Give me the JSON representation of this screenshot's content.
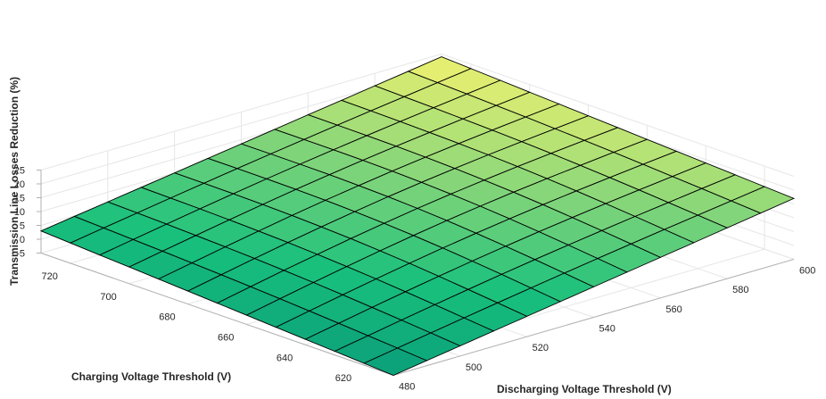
{
  "chart_data": {
    "type": "surface",
    "title": "",
    "zlabel": "Transmission Line Losses Reduction (%)",
    "ylabel": "Charging Voltage Threshold (V)",
    "xlabel": "Discharging Voltage Threshold (V)",
    "x_axis": {
      "name": "Discharging Voltage Threshold (V)",
      "range": [
        480,
        600
      ],
      "ticks": [
        480,
        500,
        520,
        540,
        560,
        580,
        600
      ]
    },
    "y_axis": {
      "name": "Charging Voltage Threshold (V)",
      "range": [
        610,
        730
      ],
      "ticks": [
        620,
        640,
        660,
        680,
        700,
        720
      ]
    },
    "z_axis": {
      "name": "Transmission Line Losses Reduction (%)",
      "range": [
        -5,
        25
      ],
      "ticks": [
        -5,
        0,
        5,
        10,
        15,
        20,
        25
      ]
    },
    "grid": true,
    "colormap": [
      "#0b9f7a",
      "#18c07c",
      "#7ed47a",
      "#f2f270"
    ],
    "surface": {
      "x": [
        480,
        490,
        500,
        510,
        520,
        530,
        540,
        550,
        560,
        570,
        580,
        590,
        600
      ],
      "y": [
        610,
        620,
        630,
        640,
        650,
        660,
        670,
        680,
        690,
        700,
        710,
        720,
        730
      ],
      "z_corners": {
        "x480_y610": -5,
        "x600_y610": 17,
        "x480_y730": 3,
        "x600_y730": 24
      },
      "z_max": 24,
      "z_min": -5
    }
  }
}
